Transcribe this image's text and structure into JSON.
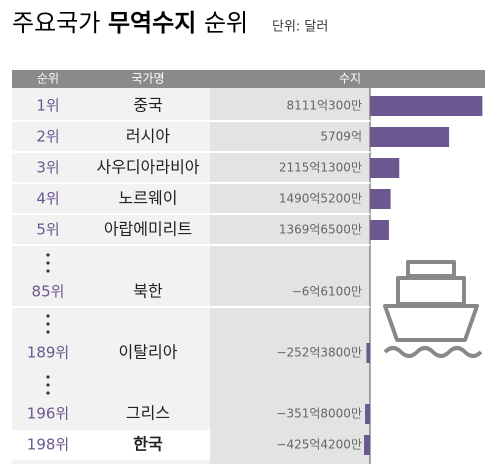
{
  "chart_data": {
    "type": "bar",
    "orientation": "horizontal",
    "title": [
      "주요국가",
      "무역수지",
      "순위"
    ],
    "unit": "단위: 달러",
    "columns": [
      "순위",
      "국가명",
      "수지"
    ],
    "ranks": [
      "1위",
      "2위",
      "3위",
      "4위",
      "5위",
      "85위",
      "189위",
      "196위",
      "198위"
    ],
    "categories": [
      "중국",
      "러시아",
      "사우디아라비아",
      "노르웨이",
      "아랍에미리트",
      "북한",
      "이탈리아",
      "그리스",
      "한국"
    ],
    "values": [
      8111.03,
      5709,
      2115.13,
      1490.52,
      1369.65,
      -6.61,
      -252.38,
      -351.8,
      -425.42
    ],
    "value_labels": [
      "8111억300만",
      "5709억",
      "2115억1300만",
      "1490억5200만",
      "1369억6500만",
      "−6억6100만",
      "−252억3800만",
      "−351억8000만",
      "−425억4200만"
    ],
    "xlim": [
      -500,
      8300
    ],
    "color": "#6b5890",
    "highlight": 8
  }
}
